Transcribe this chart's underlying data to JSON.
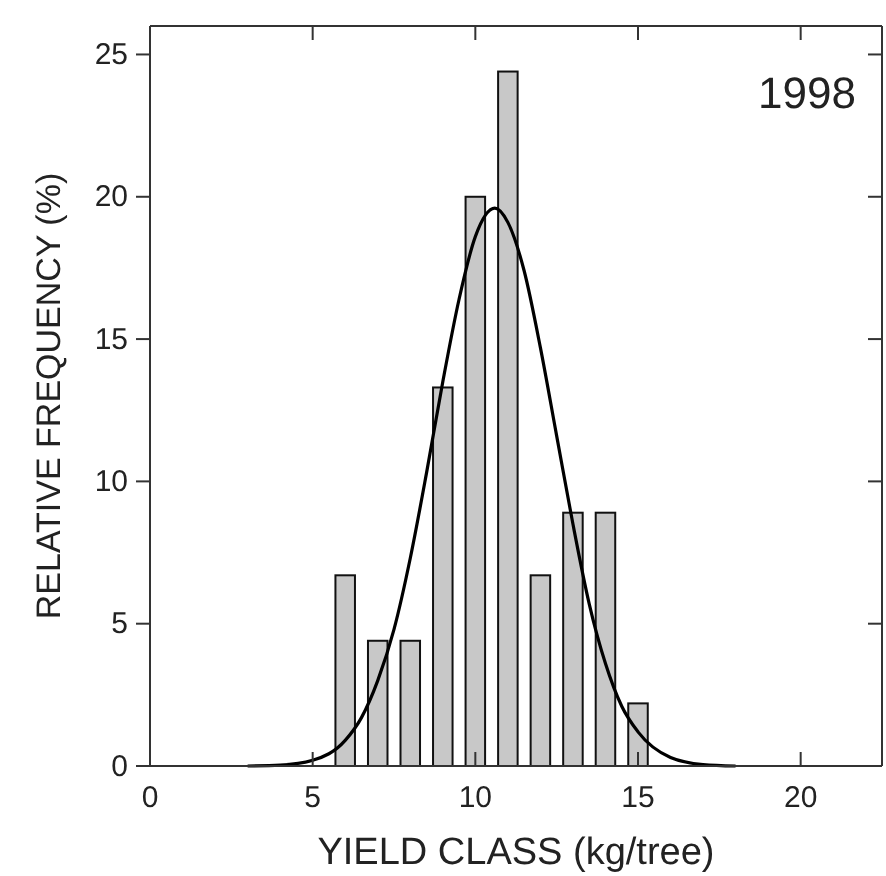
{
  "chart_data": {
    "type": "bar",
    "xlabel": "YIELD CLASS (kg/tree)",
    "ylabel": "RELATIVE FREQUENCY (%)",
    "annotations": [
      "1998"
    ],
    "xlim": [
      0,
      22.5
    ],
    "xticks": [
      0,
      5,
      10,
      15,
      20
    ],
    "ylim": [
      0,
      26
    ],
    "yticks": [
      0,
      5,
      10,
      15,
      20,
      25
    ],
    "grid": false,
    "series": [
      {
        "color": "#c8c8c8",
        "x": [
          6,
          7,
          8,
          9,
          10,
          11,
          12,
          13,
          14,
          15
        ],
        "values": [
          6.7,
          4.4,
          4.4,
          13.3,
          20,
          24.4,
          6.7,
          8.9,
          8.9,
          2.2
        ]
      },
      {
        "type": "line",
        "color": "#000000",
        "x": [
          3,
          4,
          5,
          6,
          6.5,
          7,
          7.5,
          8,
          8.5,
          9,
          9.5,
          10,
          10.6,
          11,
          11.5,
          12,
          12.5,
          13,
          13.5,
          14,
          14.5,
          15,
          16,
          17,
          18
        ],
        "values": [
          0,
          0.03,
          0.2,
          0.9,
          1.7,
          3.0,
          4.8,
          7.3,
          10.3,
          13.5,
          16.4,
          18.6,
          19.6,
          19.1,
          17.4,
          14.7,
          11.6,
          8.5,
          5.7,
          3.6,
          2.1,
          1.2,
          0.3,
          0.05,
          0
        ]
      }
    ]
  }
}
